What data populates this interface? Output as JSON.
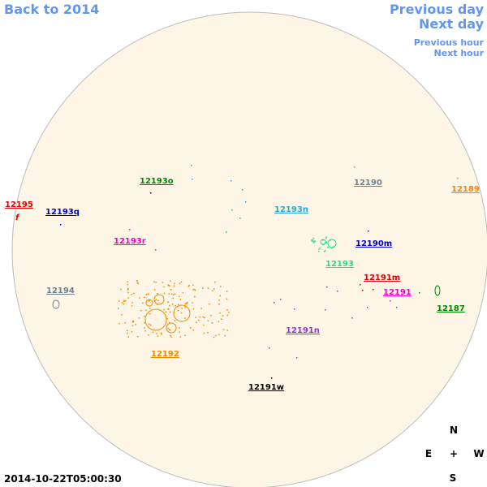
{
  "nav": {
    "back": "Back to 2014",
    "previous_day": "Previous day",
    "next_day": "Next day",
    "previous_hour": "Previous hour",
    "next_hour": "Next hour"
  },
  "timestamp": "2014-10-22T05:00:30",
  "compass": {
    "north": "N",
    "east": "E",
    "center": "+",
    "west": "W",
    "south": "S"
  },
  "regions": [
    {
      "label": "12195",
      "color": "#e00000"
    },
    {
      "label": "12193q",
      "color": "#0000cc"
    },
    {
      "label": "12193o",
      "color": "#008800"
    },
    {
      "label": "12193r",
      "color": "#ee00cc"
    },
    {
      "label": "12194",
      "color": "#708090"
    },
    {
      "label": "12192",
      "color": "#ee8800"
    },
    {
      "label": "12193n",
      "color": "#22aadd"
    },
    {
      "label": "12190",
      "color": "#708090"
    },
    {
      "label": "12189",
      "color": "#ee8800"
    },
    {
      "label": "12190m",
      "color": "#0000cc"
    },
    {
      "label": "12193",
      "color": "#22dd88"
    },
    {
      "label": "12191m",
      "color": "#e00000"
    },
    {
      "label": "12191",
      "color": "#ee00cc"
    },
    {
      "label": "12187",
      "color": "#008800"
    },
    {
      "label": "12191n",
      "color": "#9933cc"
    },
    {
      "label": "12191w",
      "color": "#000000"
    }
  ]
}
